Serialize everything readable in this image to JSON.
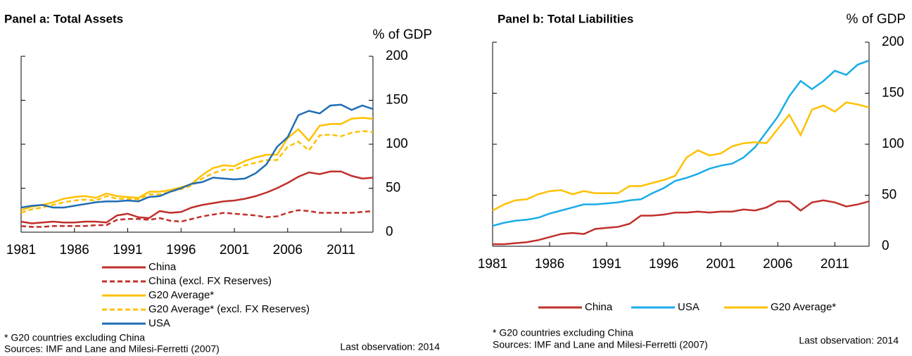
{
  "chart_data": [
    {
      "type": "line",
      "title": "Panel a:  Total Assets",
      "y_label": "% of GDP",
      "note": "* G20 countries excluding China",
      "source": "Sources: IMF and Lane and Milesi-Ferretti (2007)",
      "annotation": "Last observation: 2014",
      "x": [
        1981,
        1982,
        1983,
        1984,
        1985,
        1986,
        1987,
        1988,
        1989,
        1990,
        1991,
        1992,
        1993,
        1994,
        1995,
        1996,
        1997,
        1998,
        1999,
        2000,
        2001,
        2002,
        2003,
        2004,
        2005,
        2006,
        2007,
        2008,
        2009,
        2010,
        2011,
        2012,
        2013,
        2014
      ],
      "xlim": [
        1981,
        2014
      ],
      "xticks": [
        1981,
        1986,
        1991,
        1996,
        2001,
        2006,
        2011
      ],
      "ylim": [
        0,
        200
      ],
      "yticks": [
        0,
        50,
        100,
        150,
        200
      ],
      "series": [
        {
          "name": "China",
          "color": "#c0302b",
          "dash": false,
          "values": [
            12,
            10,
            11,
            12,
            11,
            11,
            12,
            12,
            11,
            19,
            21,
            17,
            16,
            24,
            22,
            23,
            28,
            31,
            33,
            35,
            36,
            38,
            41,
            45,
            50,
            56,
            63,
            68,
            66,
            69,
            69,
            64,
            61,
            62
          ]
        },
        {
          "name": "China (excl.  FX Reserves)",
          "color": "#c0302b",
          "dash": true,
          "values": [
            7,
            6,
            6,
            7,
            7,
            7,
            7,
            8,
            8,
            14,
            15,
            15,
            14,
            16,
            13,
            12,
            15,
            18,
            20,
            22,
            21,
            20,
            19,
            17,
            18,
            22,
            25,
            24,
            22,
            22,
            22,
            22,
            23,
            24
          ]
        },
        {
          "name": "G20 Average*",
          "color": "#ffc000",
          "dash": false,
          "values": [
            25,
            29,
            31,
            34,
            38,
            40,
            41,
            39,
            44,
            41,
            40,
            39,
            46,
            46,
            48,
            51,
            55,
            65,
            73,
            76,
            75,
            81,
            85,
            88,
            88,
            107,
            117,
            104,
            121,
            123,
            123,
            129,
            130,
            129
          ]
        },
        {
          "name": "G20 Average* (excl. FX Reserves)",
          "color": "#ffc000",
          "dash": true,
          "values": [
            22,
            26,
            28,
            31,
            34,
            36,
            37,
            36,
            41,
            38,
            38,
            37,
            43,
            43,
            46,
            49,
            53,
            61,
            67,
            71,
            71,
            76,
            79,
            82,
            82,
            97,
            103,
            93,
            110,
            111,
            109,
            113,
            115,
            114
          ]
        },
        {
          "name": "USA",
          "color": "#1f6db5",
          "dash": false,
          "values": [
            28,
            30,
            31,
            28,
            28,
            30,
            32,
            34,
            35,
            35,
            36,
            35,
            40,
            41,
            46,
            50,
            55,
            57,
            62,
            61,
            60,
            61,
            67,
            77,
            97,
            108,
            133,
            138,
            135,
            144,
            145,
            139,
            144,
            140
          ]
        }
      ]
    },
    {
      "type": "line",
      "title": "Panel b: Total Liabilities",
      "y_label": "% of GDP",
      "note": "* G20 countries excluding China",
      "source": "Sources: IMF and Lane and Milesi-Ferretti (2007)",
      "annotation": "Last observation: 2014",
      "x": [
        1981,
        1982,
        1983,
        1984,
        1985,
        1986,
        1987,
        1988,
        1989,
        1990,
        1991,
        1992,
        1993,
        1994,
        1995,
        1996,
        1997,
        1998,
        1999,
        2000,
        2001,
        2002,
        2003,
        2004,
        2005,
        2006,
        2007,
        2008,
        2009,
        2010,
        2011,
        2012,
        2013,
        2014
      ],
      "xlim": [
        1981,
        2014
      ],
      "xticks": [
        1981,
        1986,
        1991,
        1996,
        2001,
        2006,
        2011
      ],
      "ylim": [
        0,
        200
      ],
      "yticks": [
        0,
        50,
        100,
        150,
        200
      ],
      "series": [
        {
          "name": "China",
          "color": "#c0302b",
          "dash": false,
          "values": [
            2,
            2,
            3,
            4,
            6,
            9,
            12,
            13,
            12,
            17,
            18,
            19,
            22,
            30,
            30,
            31,
            33,
            33,
            34,
            33,
            34,
            34,
            36,
            35,
            38,
            44,
            44,
            35,
            43,
            45,
            43,
            39,
            41,
            44
          ]
        },
        {
          "name": "USA",
          "color": "#1aace8",
          "dash": false,
          "values": [
            20,
            23,
            25,
            26,
            28,
            32,
            35,
            38,
            41,
            41,
            42,
            43,
            45,
            46,
            52,
            57,
            64,
            67,
            71,
            76,
            79,
            81,
            87,
            97,
            112,
            127,
            147,
            162,
            154,
            162,
            172,
            168,
            178,
            182
          ]
        },
        {
          "name": "G20 Average*",
          "color": "#ffc000",
          "dash": false,
          "values": [
            35,
            41,
            45,
            46,
            51,
            54,
            55,
            51,
            54,
            52,
            52,
            52,
            59,
            59,
            62,
            65,
            69,
            87,
            94,
            89,
            91,
            98,
            101,
            102,
            101,
            115,
            129,
            109,
            134,
            138,
            132,
            141,
            139,
            136
          ]
        }
      ]
    }
  ]
}
